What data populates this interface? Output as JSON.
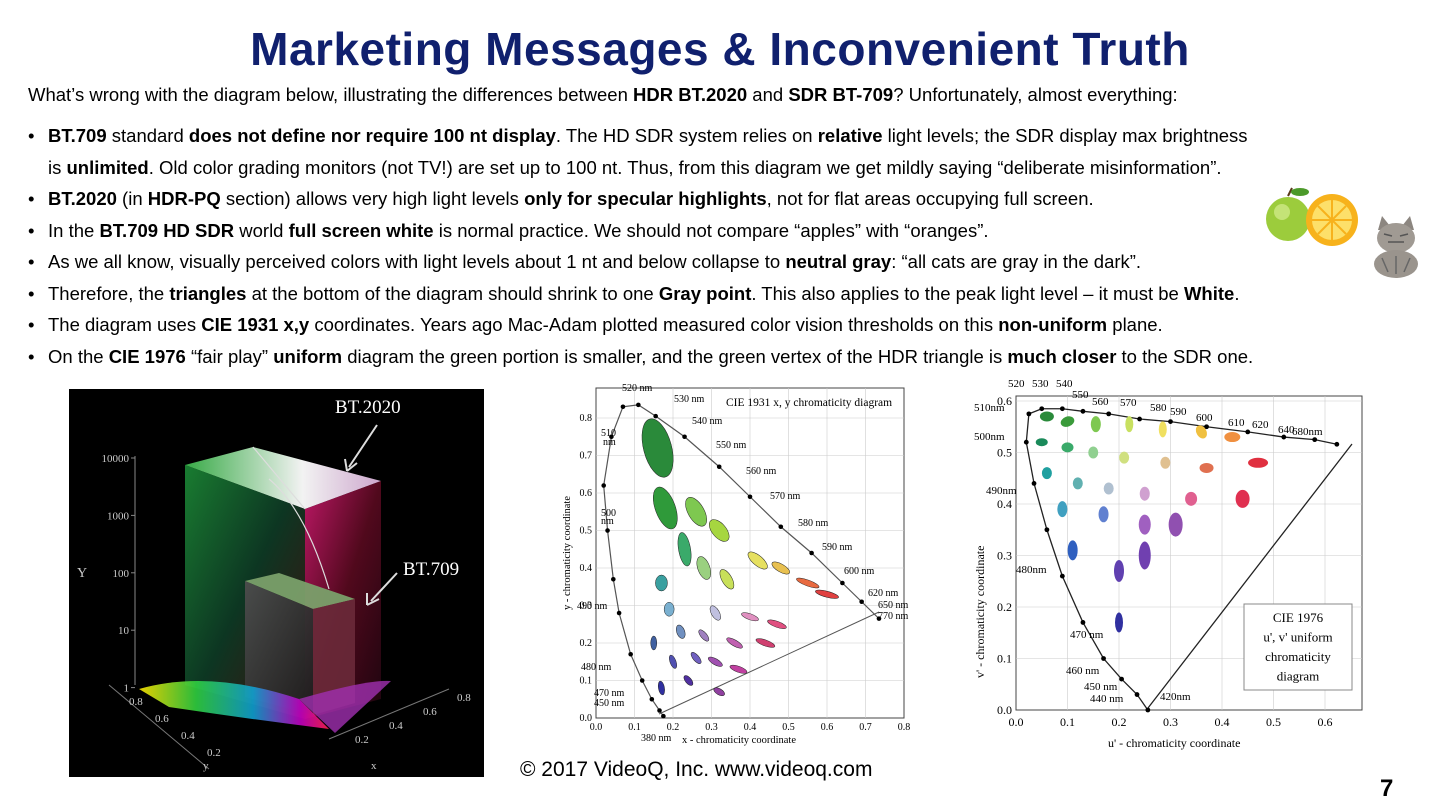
{
  "title": "Marketing Messages & Inconvenient Truth",
  "intro": [
    {
      "t": "What’s wrong with the diagram below, illustrating the differences between ",
      "b": false
    },
    {
      "t": "HDR BT.2020",
      "b": true
    },
    {
      "t": " and ",
      "b": false
    },
    {
      "t": "SDR BT-709",
      "b": true
    },
    {
      "t": "? Unfortunately, almost everything:",
      "b": false
    }
  ],
  "bullets": [
    [
      {
        "t": "BT.709",
        "b": true
      },
      {
        "t": " standard ",
        "b": false
      },
      {
        "t": "does not define nor require 100 nt display",
        "b": true
      },
      {
        "t": ". The HD SDR system relies on ",
        "b": false
      },
      {
        "t": "relative",
        "b": true
      },
      {
        "t": " light levels; the SDR display max brightness",
        "b": false
      }
    ],
    [
      {
        "t": "is ",
        "b": false
      },
      {
        "t": "unlimited",
        "b": true
      },
      {
        "t": ". Old color grading monitors (not TV!) are set up to 100 nt. Thus, from this diagram we get mildly saying “deliberate misinformation”.",
        "b": false
      }
    ],
    [
      {
        "t": "BT.2020",
        "b": true
      },
      {
        "t": " (in ",
        "b": false
      },
      {
        "t": "HDR-PQ",
        "b": true
      },
      {
        "t": " section) allows very high light levels ",
        "b": false
      },
      {
        "t": "only for specular highlights",
        "b": true
      },
      {
        "t": ", not for flat areas occupying full screen.",
        "b": false
      }
    ],
    [
      {
        "t": "In the ",
        "b": false
      },
      {
        "t": "BT.709 HD SDR",
        "b": true
      },
      {
        "t": " world ",
        "b": false
      },
      {
        "t": "full screen white",
        "b": true
      },
      {
        "t": " is normal practice. We should not compare “apples” with “oranges”.",
        "b": false
      }
    ],
    [
      {
        "t": "As we all know, visually perceived colors with light levels about 1 nt and below collapse to ",
        "b": false
      },
      {
        "t": "neutral gray",
        "b": true
      },
      {
        "t": ": “all cats are gray in the dark”.",
        "b": false
      }
    ],
    [
      {
        "t": "Therefore, the ",
        "b": false
      },
      {
        "t": "triangles",
        "b": true
      },
      {
        "t": " at the bottom of the diagram should shrink to one ",
        "b": false
      },
      {
        "t": "Gray point",
        "b": true
      },
      {
        "t": ". This also applies to the peak light level – it must be ",
        "b": false
      },
      {
        "t": "White",
        "b": true
      },
      {
        "t": ".",
        "b": false
      }
    ],
    [
      {
        "t": "The diagram uses ",
        "b": false
      },
      {
        "t": "CIE 1931 x,y",
        "b": true
      },
      {
        "t": " coordinates. Years ago Mac-Adam plotted measured color vision thresholds on this ",
        "b": false
      },
      {
        "t": "non-uniform",
        "b": true
      },
      {
        "t": " plane.",
        "b": false
      }
    ],
    [
      {
        "t": "On the ",
        "b": false
      },
      {
        "t": "CIE 1976",
        "b": true
      },
      {
        "t": " “fair play” ",
        "b": false
      },
      {
        "t": "uniform",
        "b": true
      },
      {
        "t": " diagram the green portion is smaller, and the green vertex of the HDR triangle is ",
        "b": false
      },
      {
        "t": "much closer",
        "b": true
      },
      {
        "t": " to the SDR one.",
        "b": false
      }
    ]
  ],
  "left_chart": {
    "label_bt2020": "BT.2020",
    "label_bt709": "BT.709",
    "y_axis_label": "Y",
    "y_ticks": [
      "10000",
      "1000",
      "100",
      "10",
      "1"
    ],
    "x_axis_label": "x",
    "y_floor_label": "y",
    "left_floor_ticks": [
      "0.8",
      "0.6",
      "0.4",
      "0.2"
    ],
    "right_floor_ticks": [
      "0.8",
      "0.6",
      "0.4",
      "0.2"
    ]
  },
  "cie1931": {
    "title": "CIE 1931 x, y chromaticity diagram",
    "xlabel": "x - chromaticity coordinate",
    "ylabel": "y - chromaticity coordinate",
    "x_ticks": [
      "0.0",
      "0.1",
      "0.2",
      "0.3",
      "0.4",
      "0.5",
      "0.6",
      "0.7",
      "0.8"
    ],
    "y_ticks": [
      "0.0",
      "0.1",
      "0.2",
      "0.3",
      "0.4",
      "0.5",
      "0.6",
      "0.7",
      "0.8"
    ],
    "wavelength_labels": [
      "520 nm",
      "530 nm",
      "540 nm",
      "510",
      "nm",
      "550 nm",
      "560 nm",
      "570 nm",
      "580 nm",
      "590 nm",
      "600 nm",
      "620 nm",
      "650 nm",
      "770 nm",
      "500",
      "nm",
      "490 nm",
      "480 nm",
      "470 nm",
      "450 nm",
      "380 nm"
    ]
  },
  "cie1976": {
    "xlabel": "u' - chromaticity coordinate",
    "ylabel": "v' - chromaticity coordinate",
    "x_ticks": [
      "0.0",
      "0.1",
      "0.2",
      "0.3",
      "0.4",
      "0.5",
      "0.6"
    ],
    "y_ticks": [
      "0.0",
      "0.1",
      "0.2",
      "0.3",
      "0.4",
      "0.5",
      "0.6"
    ],
    "legend_lines": [
      "CIE 1976",
      "u', v' uniform",
      "chromaticity",
      "diagram"
    ],
    "wavelength_labels": [
      "520",
      "530",
      "540",
      "550",
      "560",
      "570",
      "580",
      "590",
      "600",
      "610",
      "620",
      "640",
      "680nm",
      "510nm",
      "500nm",
      "490nm",
      "480nm",
      "470 nm",
      "460 nm",
      "450 nm",
      "440 nm",
      "420nm"
    ]
  },
  "footer": "© 2017 VideoQ, Inc. www.videoq.com",
  "page_number": "7"
}
